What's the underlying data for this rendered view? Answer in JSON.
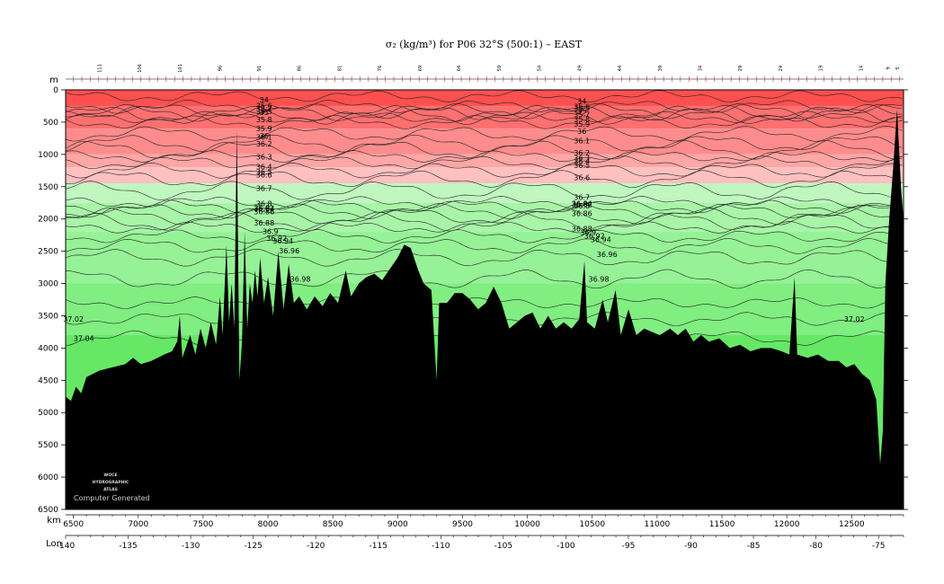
{
  "chart_data": {
    "type": "contour-section",
    "title": "σ₂ (kg/m³) for P06 32°S (500:1) – EAST",
    "ylabel": "m",
    "xlabel": "km",
    "lon_label": "Lon",
    "x_range_km": [
      6440,
      12900
    ],
    "y_range_m": [
      0,
      6500
    ],
    "y_reversed": true,
    "y_ticks": [
      0,
      500,
      1000,
      1500,
      2000,
      2500,
      3000,
      3500,
      4000,
      4500,
      5000,
      5500,
      6000,
      6500
    ],
    "x_ticks": [
      6500,
      7000,
      7500,
      8000,
      8500,
      9000,
      9500,
      10000,
      10500,
      11000,
      11500,
      12000,
      12500
    ],
    "lon_ticks": [
      {
        "km": 6440,
        "label": "-140"
      },
      {
        "km": 6820,
        "label": "-135"
      },
      {
        "km": 7200,
        "label": "-130"
      },
      {
        "km": 7590,
        "label": "-125"
      },
      {
        "km": 7970,
        "label": "-120"
      },
      {
        "km": 8350,
        "label": "-115"
      },
      {
        "km": 8730,
        "label": "-110"
      },
      {
        "km": 9110,
        "label": "-105"
      },
      {
        "km": 9490,
        "label": "-100"
      },
      {
        "km": 9870,
        "label": "-95"
      },
      {
        "km": 10250,
        "label": "-90"
      },
      {
        "km": 10640,
        "label": "-85"
      },
      {
        "km": 11020,
        "label": "-80"
      },
      {
        "km": 11400,
        "label": "-75"
      }
    ],
    "station_labels": [
      {
        "km": 6700,
        "label": "111"
      },
      {
        "km": 7010,
        "label": "106"
      },
      {
        "km": 7320,
        "label": "101"
      },
      {
        "km": 7630,
        "label": "96"
      },
      {
        "km": 7930,
        "label": "91"
      },
      {
        "km": 8240,
        "label": "86"
      },
      {
        "km": 8550,
        "label": "81"
      },
      {
        "km": 8860,
        "label": "76"
      },
      {
        "km": 9170,
        "label": "69"
      },
      {
        "km": 9470,
        "label": "64"
      },
      {
        "km": 9780,
        "label": "59"
      },
      {
        "km": 10090,
        "label": "54"
      },
      {
        "km": 10400,
        "label": "49"
      },
      {
        "km": 10710,
        "label": "44"
      },
      {
        "km": 11020,
        "label": "39"
      },
      {
        "km": 11330,
        "label": "34"
      },
      {
        "km": 11640,
        "label": "29"
      },
      {
        "km": 11950,
        "label": "24"
      },
      {
        "km": 12260,
        "label": "19"
      },
      {
        "km": 12570,
        "label": "14"
      },
      {
        "km": 12780,
        "label": "9"
      },
      {
        "km": 12850,
        "label": "5"
      }
    ],
    "contour_levels": [
      {
        "value": 34,
        "depth": 100,
        "label": "34"
      },
      {
        "value": 35,
        "depth": 260,
        "label": "35"
      },
      {
        "value": 35.5,
        "depth": 330,
        "label": "35.5"
      },
      {
        "value": 35.6,
        "depth": 360,
        "label": "35.6"
      },
      {
        "value": 35.7,
        "depth": 390,
        "label": "35.7"
      },
      {
        "value": 35.8,
        "depth": 420,
        "label": "35.8"
      },
      {
        "value": 35.9,
        "depth": 500,
        "label": "35.9"
      },
      {
        "value": 36,
        "depth": 680,
        "label": "36"
      },
      {
        "value": 36.1,
        "depth": 830,
        "label": "36.1"
      },
      {
        "value": 36.2,
        "depth": 930,
        "label": "36.2"
      },
      {
        "value": 36.3,
        "depth": 1030,
        "label": "36.3"
      },
      {
        "value": 36.4,
        "depth": 1130,
        "label": "36.4"
      },
      {
        "value": 36.5,
        "depth": 1250,
        "label": "36.5"
      },
      {
        "value": 36.6,
        "depth": 1380,
        "label": "36.6"
      },
      {
        "value": 36.7,
        "depth": 1560,
        "label": "36.7"
      },
      {
        "value": 36.8,
        "depth": 1740,
        "label": "36.8"
      },
      {
        "value": 36.82,
        "depth": 1810,
        "label": "36.82"
      },
      {
        "value": 36.84,
        "depth": 1880,
        "label": "36.84"
      },
      {
        "value": 36.86,
        "depth": 1960,
        "label": "36.86"
      },
      {
        "value": 36.88,
        "depth": 2040,
        "label": "36.88"
      },
      {
        "value": 36.9,
        "depth": 2130,
        "label": "36.9"
      },
      {
        "value": 36.92,
        "depth": 2270,
        "label": "36.92"
      },
      {
        "value": 36.94,
        "depth": 2420,
        "label": "36.94"
      },
      {
        "value": 36.96,
        "depth": 2600,
        "label": "36.96"
      },
      {
        "value": 36.98,
        "depth": 2930,
        "label": "36.98"
      },
      {
        "value": 37,
        "depth": 3300,
        "label": "37"
      },
      {
        "value": 37.02,
        "depth": 3550,
        "label": "37.02"
      },
      {
        "value": 37.04,
        "depth": 3850,
        "label": "37.04"
      }
    ],
    "color_bands": [
      {
        "from": 0,
        "to": 250,
        "color": "#ff5050"
      },
      {
        "from": 250,
        "to": 600,
        "color": "#ff7070"
      },
      {
        "from": 600,
        "to": 1000,
        "color": "#ff8c8c"
      },
      {
        "from": 1000,
        "to": 1200,
        "color": "#ffa6a6"
      },
      {
        "from": 1200,
        "to": 1450,
        "color": "#ffc0c0"
      },
      {
        "from": 1450,
        "to": 1750,
        "color": "#bff7bf"
      },
      {
        "from": 1750,
        "to": 2200,
        "color": "#a8f5a8"
      },
      {
        "from": 2200,
        "to": 3000,
        "color": "#96f296"
      },
      {
        "from": 3000,
        "to": 3800,
        "color": "#80ee80"
      },
      {
        "from": 3800,
        "to": 6500,
        "color": "#66e866"
      }
    ],
    "bathymetry": [
      [
        6440,
        4750
      ],
      [
        6480,
        4820
      ],
      [
        6520,
        4600
      ],
      [
        6560,
        4700
      ],
      [
        6600,
        4450
      ],
      [
        6650,
        4400
      ],
      [
        6700,
        4350
      ],
      [
        6800,
        4300
      ],
      [
        6900,
        4250
      ],
      [
        6960,
        4150
      ],
      [
        7020,
        4250
      ],
      [
        7100,
        4200
      ],
      [
        7200,
        4100
      ],
      [
        7260,
        4050
      ],
      [
        7300,
        3900
      ],
      [
        7320,
        3500
      ],
      [
        7340,
        4150
      ],
      [
        7400,
        3800
      ],
      [
        7440,
        4100
      ],
      [
        7480,
        3700
      ],
      [
        7520,
        4000
      ],
      [
        7560,
        3600
      ],
      [
        7600,
        3950
      ],
      [
        7630,
        3200
      ],
      [
        7650,
        3800
      ],
      [
        7680,
        2400
      ],
      [
        7700,
        3600
      ],
      [
        7720,
        3000
      ],
      [
        7740,
        3700
      ],
      [
        7760,
        600
      ],
      [
        7780,
        4500
      ],
      [
        7800,
        3900
      ],
      [
        7820,
        2200
      ],
      [
        7840,
        3700
      ],
      [
        7860,
        3000
      ],
      [
        7880,
        3300
      ],
      [
        7900,
        2800
      ],
      [
        7920,
        3200
      ],
      [
        7940,
        2600
      ],
      [
        7970,
        3300
      ],
      [
        8000,
        2900
      ],
      [
        8040,
        3500
      ],
      [
        8080,
        2500
      ],
      [
        8120,
        3400
      ],
      [
        8160,
        2700
      ],
      [
        8200,
        3300
      ],
      [
        8240,
        3200
      ],
      [
        8300,
        3400
      ],
      [
        8360,
        3200
      ],
      [
        8420,
        3350
      ],
      [
        8480,
        3150
      ],
      [
        8540,
        3300
      ],
      [
        8600,
        2800
      ],
      [
        8640,
        3200
      ],
      [
        8700,
        3000
      ],
      [
        8760,
        2900
      ],
      [
        8820,
        2850
      ],
      [
        8880,
        2950
      ],
      [
        9000,
        2600
      ],
      [
        9050,
        2400
      ],
      [
        9100,
        2450
      ],
      [
        9160,
        2800
      ],
      [
        9200,
        3000
      ],
      [
        9260,
        3100
      ],
      [
        9300,
        4500
      ],
      [
        9320,
        3300
      ],
      [
        9380,
        3300
      ],
      [
        9440,
        3150
      ],
      [
        9500,
        3150
      ],
      [
        9560,
        3250
      ],
      [
        9620,
        3400
      ],
      [
        9680,
        3300
      ],
      [
        9740,
        3050
      ],
      [
        9800,
        3300
      ],
      [
        9860,
        3700
      ],
      [
        9920,
        3600
      ],
      [
        9980,
        3500
      ],
      [
        10040,
        3450
      ],
      [
        10100,
        3700
      ],
      [
        10160,
        3500
      ],
      [
        10220,
        3700
      ],
      [
        10280,
        3600
      ],
      [
        10340,
        3700
      ],
      [
        10400,
        3550
      ],
      [
        10440,
        2650
      ],
      [
        10460,
        3600
      ],
      [
        10520,
        3700
      ],
      [
        10580,
        3250
      ],
      [
        10620,
        3600
      ],
      [
        10680,
        3100
      ],
      [
        10720,
        3800
      ],
      [
        10780,
        3400
      ],
      [
        10840,
        3800
      ],
      [
        10900,
        3700
      ],
      [
        10960,
        3750
      ],
      [
        11020,
        3800
      ],
      [
        11100,
        3700
      ],
      [
        11160,
        3800
      ],
      [
        11220,
        3700
      ],
      [
        11280,
        3900
      ],
      [
        11340,
        3800
      ],
      [
        11400,
        3900
      ],
      [
        11480,
        3850
      ],
      [
        11560,
        4000
      ],
      [
        11640,
        3950
      ],
      [
        11720,
        4050
      ],
      [
        11800,
        4000
      ],
      [
        11880,
        4000
      ],
      [
        11960,
        4050
      ],
      [
        12020,
        4100
      ],
      [
        12060,
        2900
      ],
      [
        12080,
        4100
      ],
      [
        12160,
        4150
      ],
      [
        12240,
        4100
      ],
      [
        12320,
        4200
      ],
      [
        12400,
        4200
      ],
      [
        12460,
        4300
      ],
      [
        12520,
        4250
      ],
      [
        12580,
        4400
      ],
      [
        12640,
        4500
      ],
      [
        12690,
        4800
      ],
      [
        12720,
        5800
      ],
      [
        12740,
        5300
      ],
      [
        12760,
        3000
      ],
      [
        12790,
        2000
      ],
      [
        12820,
        1200
      ],
      [
        12850,
        300
      ],
      [
        12880,
        1500
      ],
      [
        12900,
        2000
      ]
    ]
  },
  "labels": {
    "logo_line1": "WOCE",
    "logo_line2": "HYDROGRAPHIC",
    "logo_line3": "ATLAS",
    "note": "Computer Generated"
  },
  "colors": {
    "contour": "#222222",
    "seafloor": "#000000",
    "frame": "#000000",
    "station_tick": "#cc0000"
  }
}
